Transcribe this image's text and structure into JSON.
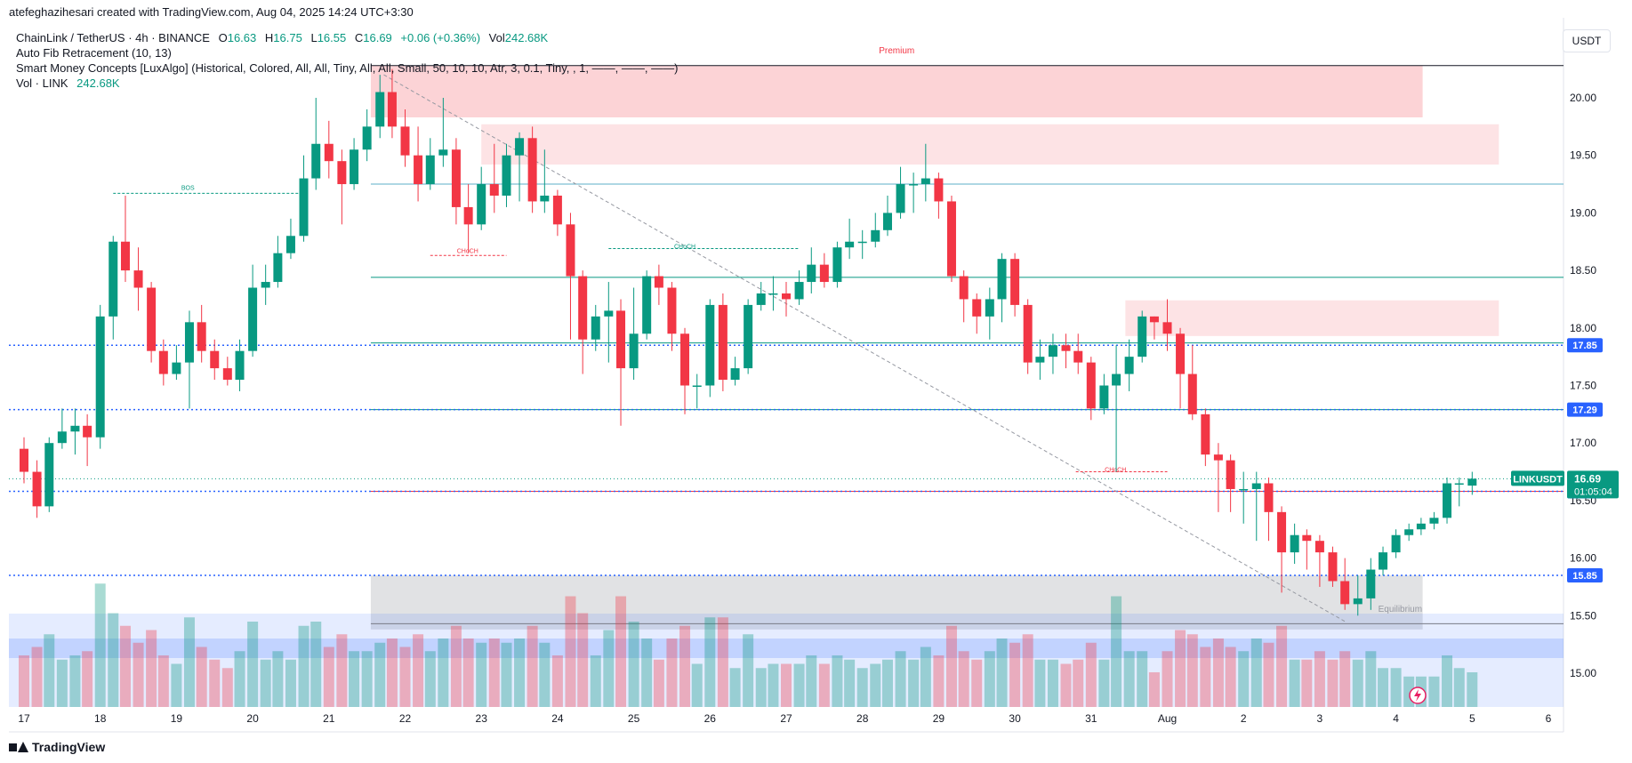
{
  "header": {
    "created_by": "atefeghazihesari created with TradingView.com, Aug 04, 2025 14:24 UTC+3:30"
  },
  "legend": {
    "symbol": "ChainLink / TetherUS · 4h · BINANCE",
    "open_label": "O",
    "open": "16.63",
    "high_label": "H",
    "high": "16.75",
    "low_label": "L",
    "low": "16.55",
    "close_label": "C",
    "close": "16.69",
    "change": "+0.06 (+0.36%)",
    "vol_label": "Vol",
    "vol": "242.68K",
    "indicator1": "Auto Fib Retracement (10, 13)",
    "indicator2": "Smart Money Concepts [LuxAlgo] (Historical, Colored, All, All, Tiny, All, All, Small, 50, 10, 10, Atr, 3, 0.1, Tiny, , 1, ——, ——, ——)",
    "indicator3_label": "Vol · LINK",
    "indicator3_value": "242.68K"
  },
  "currency": "USDT",
  "footer": {
    "brand": "TradingView"
  },
  "colors": {
    "up": "#089981",
    "down": "#f23645",
    "dots": "#2962ff"
  },
  "chart_data": {
    "type": "candlestick",
    "symbol": "LINKUSDT",
    "interval": "4h",
    "y_range": [
      14.7,
      20.6
    ],
    "y_ticks": [
      15.0,
      15.5,
      16.0,
      16.5,
      17.0,
      17.5,
      18.0,
      18.5,
      19.0,
      19.5,
      20.0
    ],
    "x_ticks": [
      {
        "label": "17",
        "day": 0
      },
      {
        "label": "18",
        "day": 1
      },
      {
        "label": "19",
        "day": 2
      },
      {
        "label": "20",
        "day": 3
      },
      {
        "label": "21",
        "day": 4
      },
      {
        "label": "22",
        "day": 5
      },
      {
        "label": "23",
        "day": 6
      },
      {
        "label": "24",
        "day": 7
      },
      {
        "label": "25",
        "day": 8
      },
      {
        "label": "26",
        "day": 9
      },
      {
        "label": "27",
        "day": 10
      },
      {
        "label": "28",
        "day": 11
      },
      {
        "label": "29",
        "day": 12
      },
      {
        "label": "30",
        "day": 13
      },
      {
        "label": "31",
        "day": 14
      },
      {
        "label": "Aug",
        "day": 15
      },
      {
        "label": "2",
        "day": 16
      },
      {
        "label": "3",
        "day": 17
      },
      {
        "label": "4",
        "day": 18
      },
      {
        "label": "5",
        "day": 19
      },
      {
        "label": "6",
        "day": 20
      }
    ],
    "price_labels": [
      {
        "text": "17.85",
        "value": 17.85,
        "color": "#2962ff"
      },
      {
        "text": "17.29",
        "value": 17.29,
        "color": "#2962ff"
      },
      {
        "text": "16.58",
        "value": 16.58,
        "color": "#2962ff"
      },
      {
        "text": "15.85",
        "value": 15.85,
        "color": "#2962ff"
      }
    ],
    "last_price": {
      "symbol": "LINKUSDT",
      "value": 16.69,
      "text": "16.69",
      "countdown": "01:05:04"
    },
    "zones": [
      {
        "label": "Premium",
        "y0": 19.83,
        "y1": 20.28,
        "d0": 4.55,
        "d1": 18.35,
        "color": "#f23645"
      },
      {
        "label": "",
        "y0": 19.42,
        "y1": 19.77,
        "d0": 6.0,
        "d1": 19.35,
        "color": "#f23645"
      },
      {
        "label": "",
        "y0": 17.93,
        "y1": 18.24,
        "d0": 14.45,
        "d1": 19.35,
        "color": "#f23645"
      },
      {
        "label": "Equilibrium",
        "y0": 15.38,
        "y1": 15.85,
        "d0": 4.55,
        "d1": 18.35,
        "color": "#787b86"
      }
    ],
    "structure_labels": [
      {
        "text": "BOS",
        "day": 2.15,
        "y": 19.17,
        "color": "#089981"
      },
      {
        "text": "CHoCH",
        "day": 5.82,
        "y": 18.62,
        "color": "#f23645"
      },
      {
        "text": "CHoCH",
        "day": 8.67,
        "y": 18.66,
        "color": "#089981"
      },
      {
        "text": "CHoCH",
        "day": 14.32,
        "y": 16.72,
        "color": "#f23645"
      }
    ],
    "candles": [
      [
        0.0,
        16.95,
        16.75,
        17.05,
        16.65
      ],
      [
        0.17,
        16.75,
        16.45,
        16.85,
        16.35
      ],
      [
        0.33,
        16.45,
        17.0,
        17.05,
        16.4
      ],
      [
        0.5,
        17.0,
        17.1,
        17.3,
        16.95
      ],
      [
        0.67,
        17.1,
        17.15,
        17.3,
        16.9
      ],
      [
        0.83,
        17.15,
        17.05,
        17.25,
        16.8
      ],
      [
        1.0,
        17.05,
        18.1,
        18.2,
        16.95
      ],
      [
        1.17,
        18.1,
        18.75,
        18.8,
        17.9
      ],
      [
        1.33,
        18.75,
        18.5,
        19.15,
        18.4
      ],
      [
        1.5,
        18.5,
        18.35,
        18.7,
        18.15
      ],
      [
        1.67,
        18.35,
        17.8,
        18.4,
        17.7
      ],
      [
        1.83,
        17.8,
        17.6,
        17.9,
        17.5
      ],
      [
        2.0,
        17.6,
        17.7,
        17.85,
        17.55
      ],
      [
        2.17,
        17.7,
        18.05,
        18.15,
        17.3
      ],
      [
        2.33,
        18.05,
        17.8,
        18.2,
        17.7
      ],
      [
        2.5,
        17.8,
        17.65,
        17.9,
        17.55
      ],
      [
        2.67,
        17.65,
        17.55,
        17.75,
        17.5
      ],
      [
        2.83,
        17.55,
        17.8,
        17.9,
        17.45
      ],
      [
        3.0,
        17.8,
        18.35,
        18.55,
        17.75
      ],
      [
        3.17,
        18.35,
        18.4,
        18.55,
        18.2
      ],
      [
        3.33,
        18.4,
        18.65,
        18.8,
        18.35
      ],
      [
        3.5,
        18.65,
        18.8,
        18.95,
        18.6
      ],
      [
        3.67,
        18.8,
        19.3,
        19.5,
        18.75
      ],
      [
        3.83,
        19.3,
        19.6,
        20.0,
        19.2
      ],
      [
        4.0,
        19.6,
        19.45,
        19.8,
        19.3
      ],
      [
        4.17,
        19.45,
        19.25,
        19.55,
        18.9
      ],
      [
        4.33,
        19.25,
        19.55,
        19.65,
        19.2
      ],
      [
        4.5,
        19.55,
        19.75,
        19.9,
        19.45
      ],
      [
        4.67,
        19.75,
        20.05,
        20.2,
        19.65
      ],
      [
        4.83,
        20.05,
        19.75,
        20.25,
        19.65
      ],
      [
        5.0,
        19.75,
        19.5,
        19.9,
        19.4
      ],
      [
        5.17,
        19.5,
        19.25,
        19.75,
        19.1
      ],
      [
        5.33,
        19.25,
        19.5,
        19.65,
        19.2
      ],
      [
        5.5,
        19.5,
        19.55,
        20.0,
        19.4
      ],
      [
        5.67,
        19.55,
        19.05,
        19.65,
        18.9
      ],
      [
        5.83,
        19.05,
        18.9,
        19.25,
        18.65
      ],
      [
        6.0,
        18.9,
        19.25,
        19.4,
        18.85
      ],
      [
        6.17,
        19.25,
        19.15,
        19.6,
        19.0
      ],
      [
        6.33,
        19.15,
        19.5,
        19.6,
        19.05
      ],
      [
        6.5,
        19.5,
        19.65,
        19.7,
        19.1
      ],
      [
        6.67,
        19.65,
        19.1,
        19.75,
        19.0
      ],
      [
        6.83,
        19.1,
        19.15,
        19.55,
        19.0
      ],
      [
        7.0,
        19.15,
        18.9,
        19.2,
        18.8
      ],
      [
        7.17,
        18.9,
        18.45,
        19.0,
        17.9
      ],
      [
        7.33,
        18.45,
        17.9,
        18.5,
        17.6
      ],
      [
        7.5,
        17.9,
        18.1,
        18.2,
        17.8
      ],
      [
        7.67,
        18.1,
        18.15,
        18.4,
        17.7
      ],
      [
        7.83,
        18.15,
        17.65,
        18.25,
        17.15
      ],
      [
        8.0,
        17.65,
        17.95,
        18.35,
        17.55
      ],
      [
        8.17,
        17.95,
        18.45,
        18.5,
        17.9
      ],
      [
        8.33,
        18.45,
        18.35,
        18.55,
        18.2
      ],
      [
        8.5,
        18.35,
        17.95,
        18.4,
        17.8
      ],
      [
        8.67,
        17.95,
        17.5,
        18.0,
        17.25
      ],
      [
        8.83,
        17.5,
        17.5,
        17.6,
        17.3
      ],
      [
        9.0,
        17.5,
        18.2,
        18.25,
        17.4
      ],
      [
        9.17,
        18.2,
        17.55,
        18.3,
        17.45
      ],
      [
        9.33,
        17.55,
        17.65,
        17.75,
        17.5
      ],
      [
        9.5,
        17.65,
        18.2,
        18.25,
        17.6
      ],
      [
        9.67,
        18.2,
        18.3,
        18.4,
        18.15
      ],
      [
        9.83,
        18.3,
        18.3,
        18.45,
        18.15
      ],
      [
        10.0,
        18.3,
        18.25,
        18.4,
        18.1
      ],
      [
        10.17,
        18.25,
        18.4,
        18.5,
        18.2
      ],
      [
        10.33,
        18.4,
        18.55,
        18.7,
        18.3
      ],
      [
        10.5,
        18.55,
        18.4,
        18.65,
        18.35
      ],
      [
        10.67,
        18.4,
        18.7,
        18.75,
        18.35
      ],
      [
        10.83,
        18.7,
        18.75,
        18.95,
        18.6
      ],
      [
        11.0,
        18.75,
        18.75,
        18.85,
        18.6
      ],
      [
        11.17,
        18.75,
        18.85,
        19.0,
        18.7
      ],
      [
        11.33,
        18.85,
        19.0,
        19.15,
        18.8
      ],
      [
        11.5,
        19.0,
        19.25,
        19.4,
        18.95
      ],
      [
        11.67,
        19.25,
        19.25,
        19.35,
        19.0
      ],
      [
        11.83,
        19.25,
        19.3,
        19.6,
        19.1
      ],
      [
        12.0,
        19.3,
        19.1,
        19.35,
        18.95
      ],
      [
        12.17,
        19.1,
        18.45,
        19.15,
        18.4
      ],
      [
        12.33,
        18.45,
        18.25,
        18.5,
        18.05
      ],
      [
        12.5,
        18.25,
        18.1,
        18.3,
        17.95
      ],
      [
        12.67,
        18.1,
        18.25,
        18.35,
        17.9
      ],
      [
        12.83,
        18.25,
        18.6,
        18.65,
        18.05
      ],
      [
        13.0,
        18.6,
        18.2,
        18.65,
        18.1
      ],
      [
        13.17,
        18.2,
        17.7,
        18.25,
        17.6
      ],
      [
        13.33,
        17.7,
        17.75,
        17.9,
        17.55
      ],
      [
        13.5,
        17.75,
        17.85,
        17.95,
        17.6
      ],
      [
        13.67,
        17.85,
        17.8,
        17.95,
        17.65
      ],
      [
        13.83,
        17.8,
        17.7,
        17.95,
        17.6
      ],
      [
        14.0,
        17.7,
        17.3,
        17.75,
        17.2
      ],
      [
        14.17,
        17.3,
        17.5,
        17.6,
        17.25
      ],
      [
        14.33,
        17.5,
        17.6,
        17.85,
        16.75
      ],
      [
        14.5,
        17.6,
        17.75,
        17.9,
        17.45
      ],
      [
        14.67,
        17.75,
        18.1,
        18.15,
        17.7
      ],
      [
        14.83,
        18.1,
        18.05,
        18.1,
        17.9
      ],
      [
        15.0,
        18.05,
        17.95,
        18.25,
        17.8
      ],
      [
        15.17,
        17.95,
        17.6,
        18.0,
        17.3
      ],
      [
        15.33,
        17.6,
        17.25,
        17.85,
        17.2
      ],
      [
        15.5,
        17.25,
        16.9,
        17.3,
        16.8
      ],
      [
        15.67,
        16.9,
        16.85,
        17.0,
        16.4
      ],
      [
        15.83,
        16.85,
        16.6,
        16.9,
        16.4
      ],
      [
        16.0,
        16.6,
        16.6,
        16.75,
        16.3
      ],
      [
        16.17,
        16.6,
        16.65,
        16.75,
        16.15
      ],
      [
        16.33,
        16.65,
        16.4,
        16.7,
        16.15
      ],
      [
        16.5,
        16.4,
        16.05,
        16.45,
        15.7
      ],
      [
        16.67,
        16.05,
        16.2,
        16.3,
        15.95
      ],
      [
        16.83,
        16.2,
        16.15,
        16.25,
        15.9
      ],
      [
        17.0,
        16.15,
        16.05,
        16.2,
        15.75
      ],
      [
        17.17,
        16.05,
        15.8,
        16.1,
        15.75
      ],
      [
        17.33,
        15.8,
        15.6,
        16.0,
        15.55
      ],
      [
        17.5,
        15.6,
        15.65,
        15.85,
        15.5
      ],
      [
        17.67,
        15.65,
        15.9,
        16.0,
        15.55
      ],
      [
        17.83,
        15.9,
        16.05,
        16.1,
        15.85
      ],
      [
        18.0,
        16.05,
        16.2,
        16.25,
        16.0
      ],
      [
        18.17,
        16.2,
        16.25,
        16.3,
        16.15
      ],
      [
        18.33,
        16.25,
        16.3,
        16.35,
        16.2
      ],
      [
        18.5,
        16.3,
        16.35,
        16.4,
        16.25
      ],
      [
        18.67,
        16.35,
        16.65,
        16.7,
        16.3
      ],
      [
        18.83,
        16.65,
        16.65,
        16.7,
        16.45
      ],
      [
        19.0,
        16.63,
        16.69,
        16.75,
        16.55
      ]
    ]
  }
}
